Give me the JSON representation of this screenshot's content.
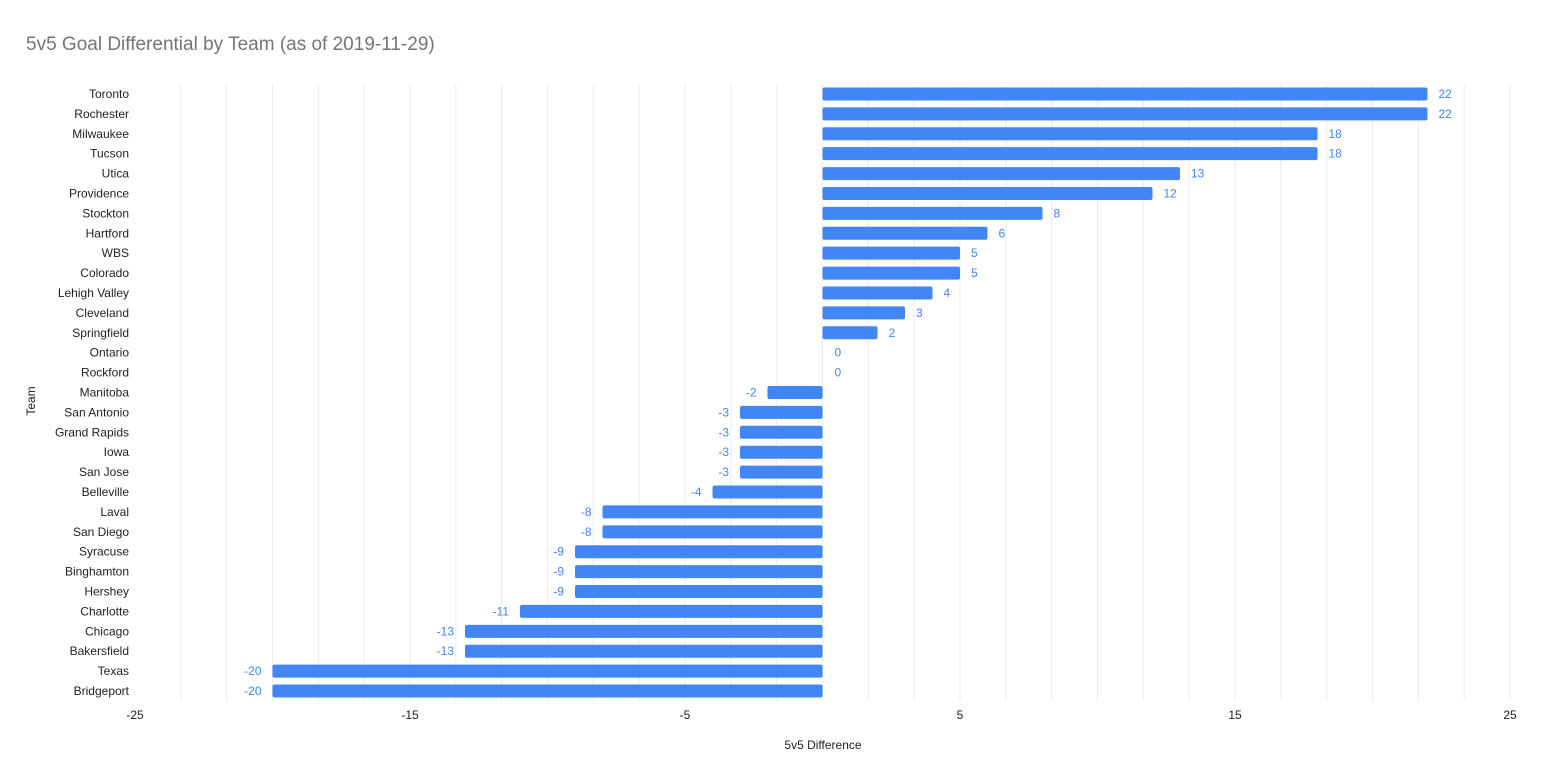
{
  "chart_data": {
    "type": "bar",
    "orientation": "horizontal",
    "title": "5v5 Goal Differential by Team (as of 2019-11-29)",
    "xlabel": "5v5 Difference",
    "ylabel": "Team",
    "xlim": [
      -25,
      25
    ],
    "x_ticks": [
      -25,
      -15,
      -5,
      5,
      15,
      25
    ],
    "x_minor_step": 1.6667,
    "grid": true,
    "legend": "none",
    "colors": {
      "bar": "#4285f4",
      "data_label": "#4285f4",
      "major_grid": "#cccccc",
      "minor_grid": "#ebebeb",
      "title": "#757575",
      "text": "#222222"
    },
    "categories": [
      "Toronto",
      "Rochester",
      "Milwaukee",
      "Tucson",
      "Utica",
      "Providence",
      "Stockton",
      "Hartford",
      "WBS",
      "Colorado",
      "Lehigh Valley",
      "Cleveland",
      "Springfield",
      "Ontario",
      "Rockford",
      "Manitoba",
      "San Antonio",
      "Grand Rapids",
      "Iowa",
      "San Jose",
      "Belleville",
      "Laval",
      "San Diego",
      "Syracuse",
      "Binghamton",
      "Hershey",
      "Charlotte",
      "Chicago",
      "Bakersfield",
      "Texas",
      "Bridgeport"
    ],
    "series": [
      {
        "values": [
          22,
          22,
          18,
          18,
          13,
          12,
          8,
          6,
          5,
          5,
          4,
          3,
          2,
          0,
          0,
          -2,
          -3,
          -3,
          -3,
          -3,
          -4,
          -8,
          -8,
          -9,
          -9,
          -9,
          -11,
          -13,
          -13,
          -20,
          -20
        ]
      }
    ]
  }
}
